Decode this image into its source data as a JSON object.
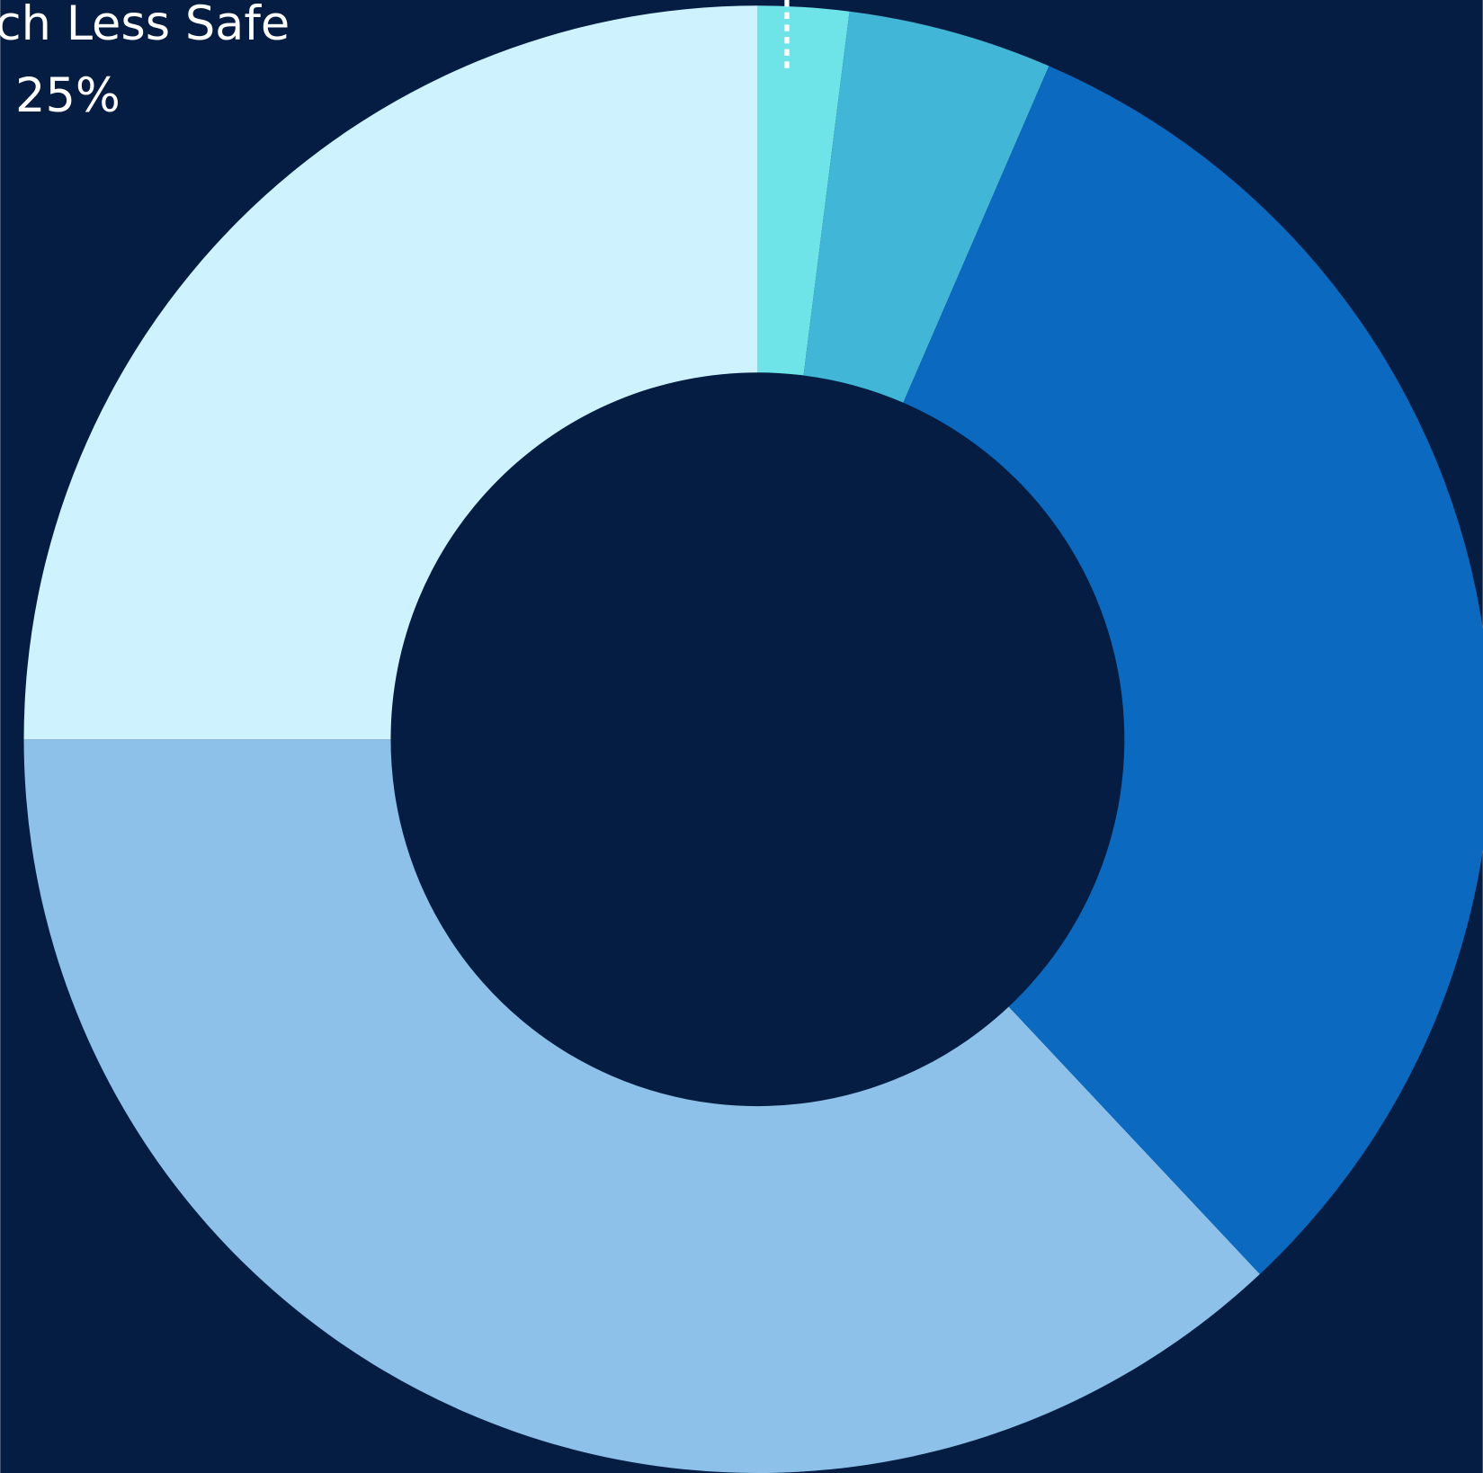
{
  "chart_data": {
    "type": "donut",
    "categories": [
      null,
      null,
      null,
      null,
      "Much Less Safe"
    ],
    "values": [
      2,
      4.5,
      31.5,
      37,
      25
    ],
    "value_labels": [
      null,
      null,
      null,
      null,
      "25%"
    ],
    "colors": [
      "#6ee4e8",
      "#42b6d6",
      "#0b6abf",
      "#8ec1e9",
      "#cff3fe"
    ],
    "background": "#051d42"
  }
}
